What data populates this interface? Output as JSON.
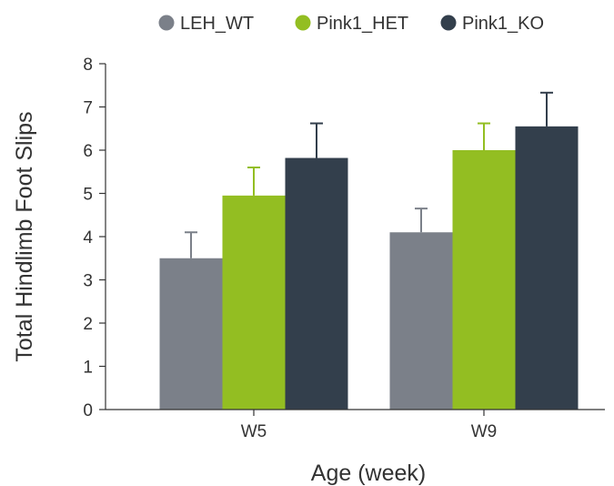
{
  "chart_data": {
    "type": "bar",
    "title": "",
    "xlabel": "Age (week)",
    "ylabel": "Total Hindlimb Foot Slips",
    "categories": [
      "W5",
      "W9"
    ],
    "ylim": [
      0,
      8
    ],
    "yticks": [
      0,
      1,
      2,
      3,
      4,
      5,
      6,
      7,
      8
    ],
    "grid": false,
    "legend_position": "top",
    "error_bars": "upper only",
    "series": [
      {
        "name": "LEH_WT",
        "color": "#7b8089",
        "values": [
          3.5,
          4.1
        ],
        "errors": [
          0.6,
          0.55
        ]
      },
      {
        "name": "Pink1_HET",
        "color": "#93be22",
        "values": [
          4.95,
          6.0
        ],
        "errors": [
          0.65,
          0.62
        ]
      },
      {
        "name": "Pink1_KO",
        "color": "#333f4c",
        "values": [
          5.82,
          6.55
        ],
        "errors": [
          0.8,
          0.78
        ]
      }
    ]
  }
}
